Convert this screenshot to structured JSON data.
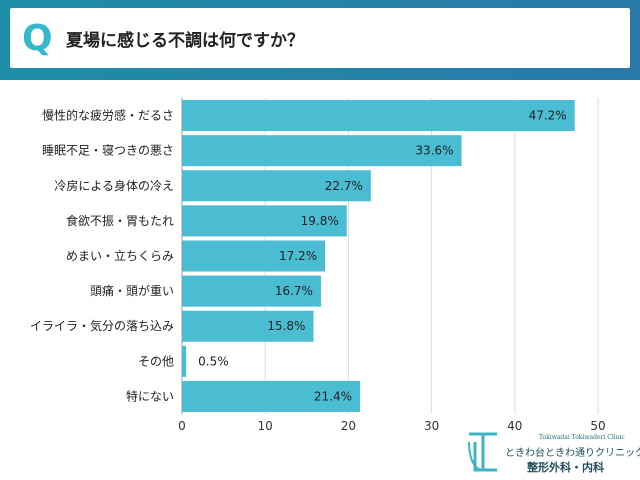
{
  "header": {
    "q_label": "Q",
    "title": "夏場に感じる不調は何ですか？"
  },
  "chart_data": {
    "type": "bar",
    "orientation": "horizontal",
    "categories": [
      "慢性的な疲労感・だるさ",
      "睡眠不足・寝つきの悪さ",
      "冷房による身体の冷え",
      "食欲不振・胃もたれ",
      "めまい・立ちくらみ",
      "頭痛・頭が重い",
      "イライラ・気分の落ち込み",
      "その他",
      "特にない"
    ],
    "values": [
      47.2,
      33.6,
      22.7,
      19.8,
      17.2,
      16.7,
      15.8,
      0.5,
      21.4
    ],
    "value_labels": [
      "47.2%",
      "33.6%",
      "22.7%",
      "19.8%",
      "17.2%",
      "16.7%",
      "15.8%",
      "0.5%",
      "21.4%"
    ],
    "xlim": [
      0,
      50
    ],
    "xticks": [
      "0",
      "10",
      "20",
      "30",
      "40",
      "50"
    ],
    "grid": true,
    "bar_color": "#4bbdd3"
  },
  "logo": {
    "roman": "Tokiwadai Tokiwadori Clinic",
    "name": "ときわ台ときわ通りクリニック",
    "dept": "整形外科・内科",
    "mark_color": "#3fb3c8"
  }
}
